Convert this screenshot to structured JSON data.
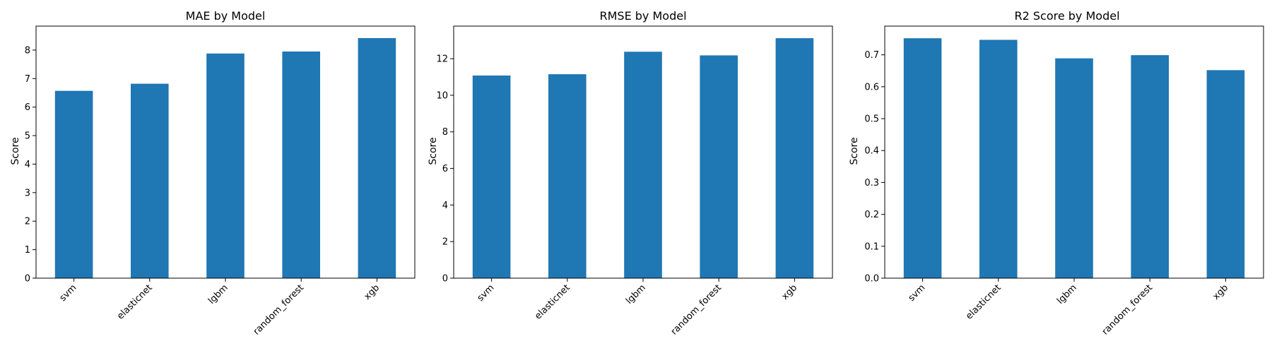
{
  "chart_data": [
    {
      "type": "bar",
      "title": "MAE by Model",
      "xlabel": "",
      "ylabel": "Score",
      "categories": [
        "svm",
        "elasticnet",
        "lgbm",
        "random_forest",
        "xgb"
      ],
      "values": [
        6.57,
        6.82,
        7.88,
        7.95,
        8.42
      ],
      "ylim": [
        0,
        8.84
      ],
      "yticks": [
        0,
        1,
        2,
        3,
        4,
        5,
        6,
        7,
        8
      ],
      "ytick_labels": [
        "0",
        "1",
        "2",
        "3",
        "4",
        "5",
        "6",
        "7",
        "8"
      ],
      "bar_color": "#1f77b4",
      "grid": false
    },
    {
      "type": "bar",
      "title": "RMSE by Model",
      "xlabel": "",
      "ylabel": "Score",
      "categories": [
        "svm",
        "elasticnet",
        "lgbm",
        "random_forest",
        "xgb"
      ],
      "values": [
        11.08,
        11.15,
        12.38,
        12.18,
        13.12
      ],
      "ylim": [
        0,
        13.78
      ],
      "yticks": [
        0,
        2,
        4,
        6,
        8,
        10,
        12
      ],
      "ytick_labels": [
        "0",
        "2",
        "4",
        "6",
        "8",
        "10",
        "12"
      ],
      "bar_color": "#1f77b4",
      "grid": false
    },
    {
      "type": "bar",
      "title": "R2 Score by Model",
      "xlabel": "",
      "ylabel": "Score",
      "categories": [
        "svm",
        "elasticnet",
        "lgbm",
        "random_forest",
        "xgb"
      ],
      "values": [
        0.752,
        0.747,
        0.689,
        0.699,
        0.652
      ],
      "ylim": [
        0,
        0.79
      ],
      "yticks": [
        0,
        0.1,
        0.2,
        0.3,
        0.4,
        0.5,
        0.6,
        0.7
      ],
      "ytick_labels": [
        "0.0",
        "0.1",
        "0.2",
        "0.3",
        "0.4",
        "0.5",
        "0.6",
        "0.7"
      ],
      "bar_color": "#1f77b4",
      "grid": false
    }
  ]
}
